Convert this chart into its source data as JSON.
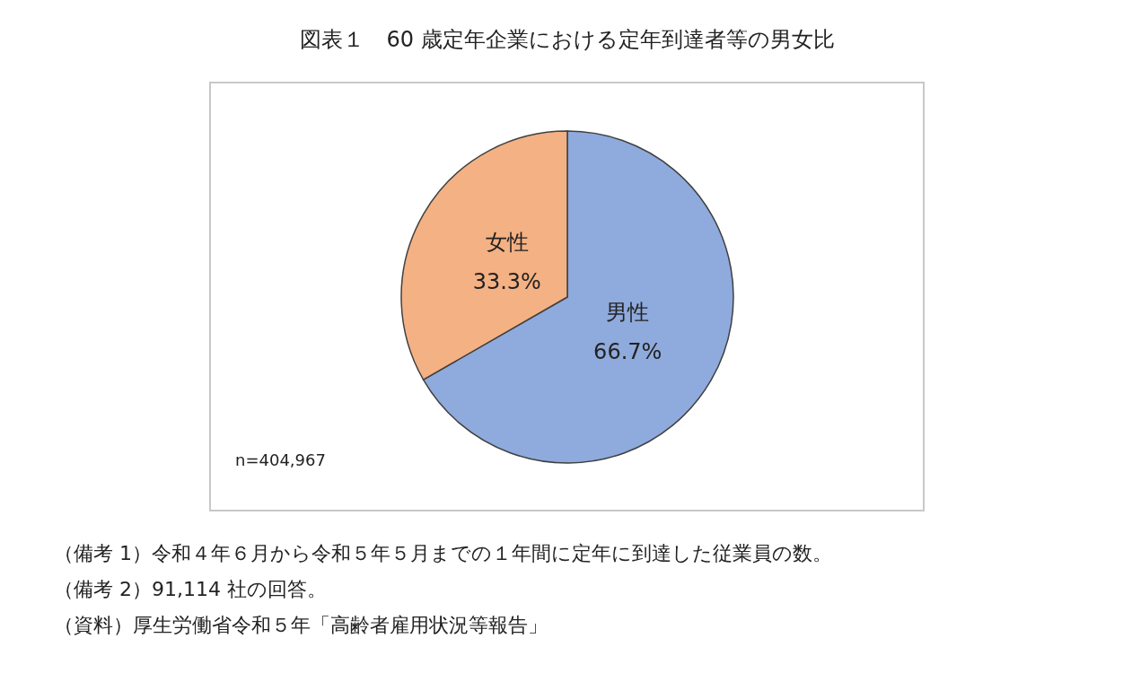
{
  "chart_data": {
    "type": "pie",
    "title": "図表１　60 歳定年企業における定年到達者等の男女比",
    "categories": [
      "男性",
      "女性"
    ],
    "values": [
      66.7,
      33.3
    ],
    "colors": [
      "#8faadc",
      "#f4b183"
    ],
    "value_labels": [
      "66.7%",
      "33.3%"
    ],
    "annotations": [
      "n=404,967",
      "（備考 1）令和４年６月から令和５年５月までの１年間に定年に到達した従業員の数。",
      "（備考 2）91,114 社の回答。",
      "（資料）厚生労働省令和５年「高齢者雇用状況等報告」"
    ]
  }
}
